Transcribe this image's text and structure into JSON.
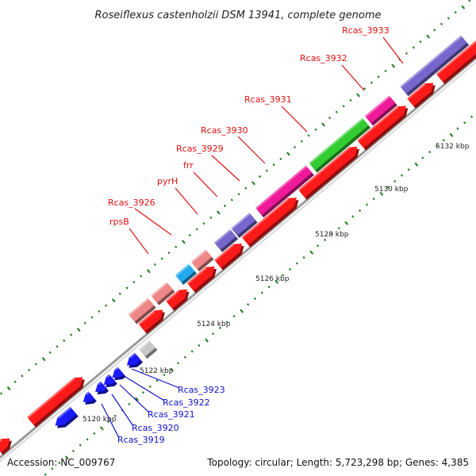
{
  "title": "Roseiflexus castenholzii DSM 13941, complete genome",
  "footer": {
    "accession": "Accession: NC_009767",
    "summary": "Topology: circular; Length: 5,723,298 bp; Genes: 4,385"
  },
  "colors": {
    "forward_red": "#ff1a1a",
    "reverse_blue": "#1a1aff",
    "label_red": "#e01010",
    "label_blue": "#1010c8",
    "backbone": "#9a9a9a",
    "tick_green": "#1a7a1a",
    "purple": "#7766cc",
    "pink": "#ee1a99",
    "green": "#33cc33",
    "cyan": "#22aaee",
    "salmon": "#ee8888",
    "gray": "#c8c8c8",
    "teal": "#1aa090"
  },
  "scale_labels": [
    "5120 kbp",
    "5122 kbp",
    "5124 kbp",
    "5126 kbp",
    "5128 kbp",
    "5130 kbp",
    "5132 kbp"
  ],
  "top_labels": [
    {
      "text": "rpsB"
    },
    {
      "text": "Rcas_3926"
    },
    {
      "text": "pyrH"
    },
    {
      "text": "frr"
    },
    {
      "text": "Rcas_3929"
    },
    {
      "text": "Rcas_3930"
    },
    {
      "text": "Rcas_3931"
    },
    {
      "text": "Rcas_3932"
    },
    {
      "text": "Rcas_3933"
    }
  ],
  "bottom_labels": [
    {
      "text": "Rcas_3919"
    },
    {
      "text": "Rcas_3920"
    },
    {
      "text": "Rcas_3921"
    },
    {
      "text": "Rcas_3922"
    },
    {
      "text": "Rcas_3923"
    }
  ]
}
